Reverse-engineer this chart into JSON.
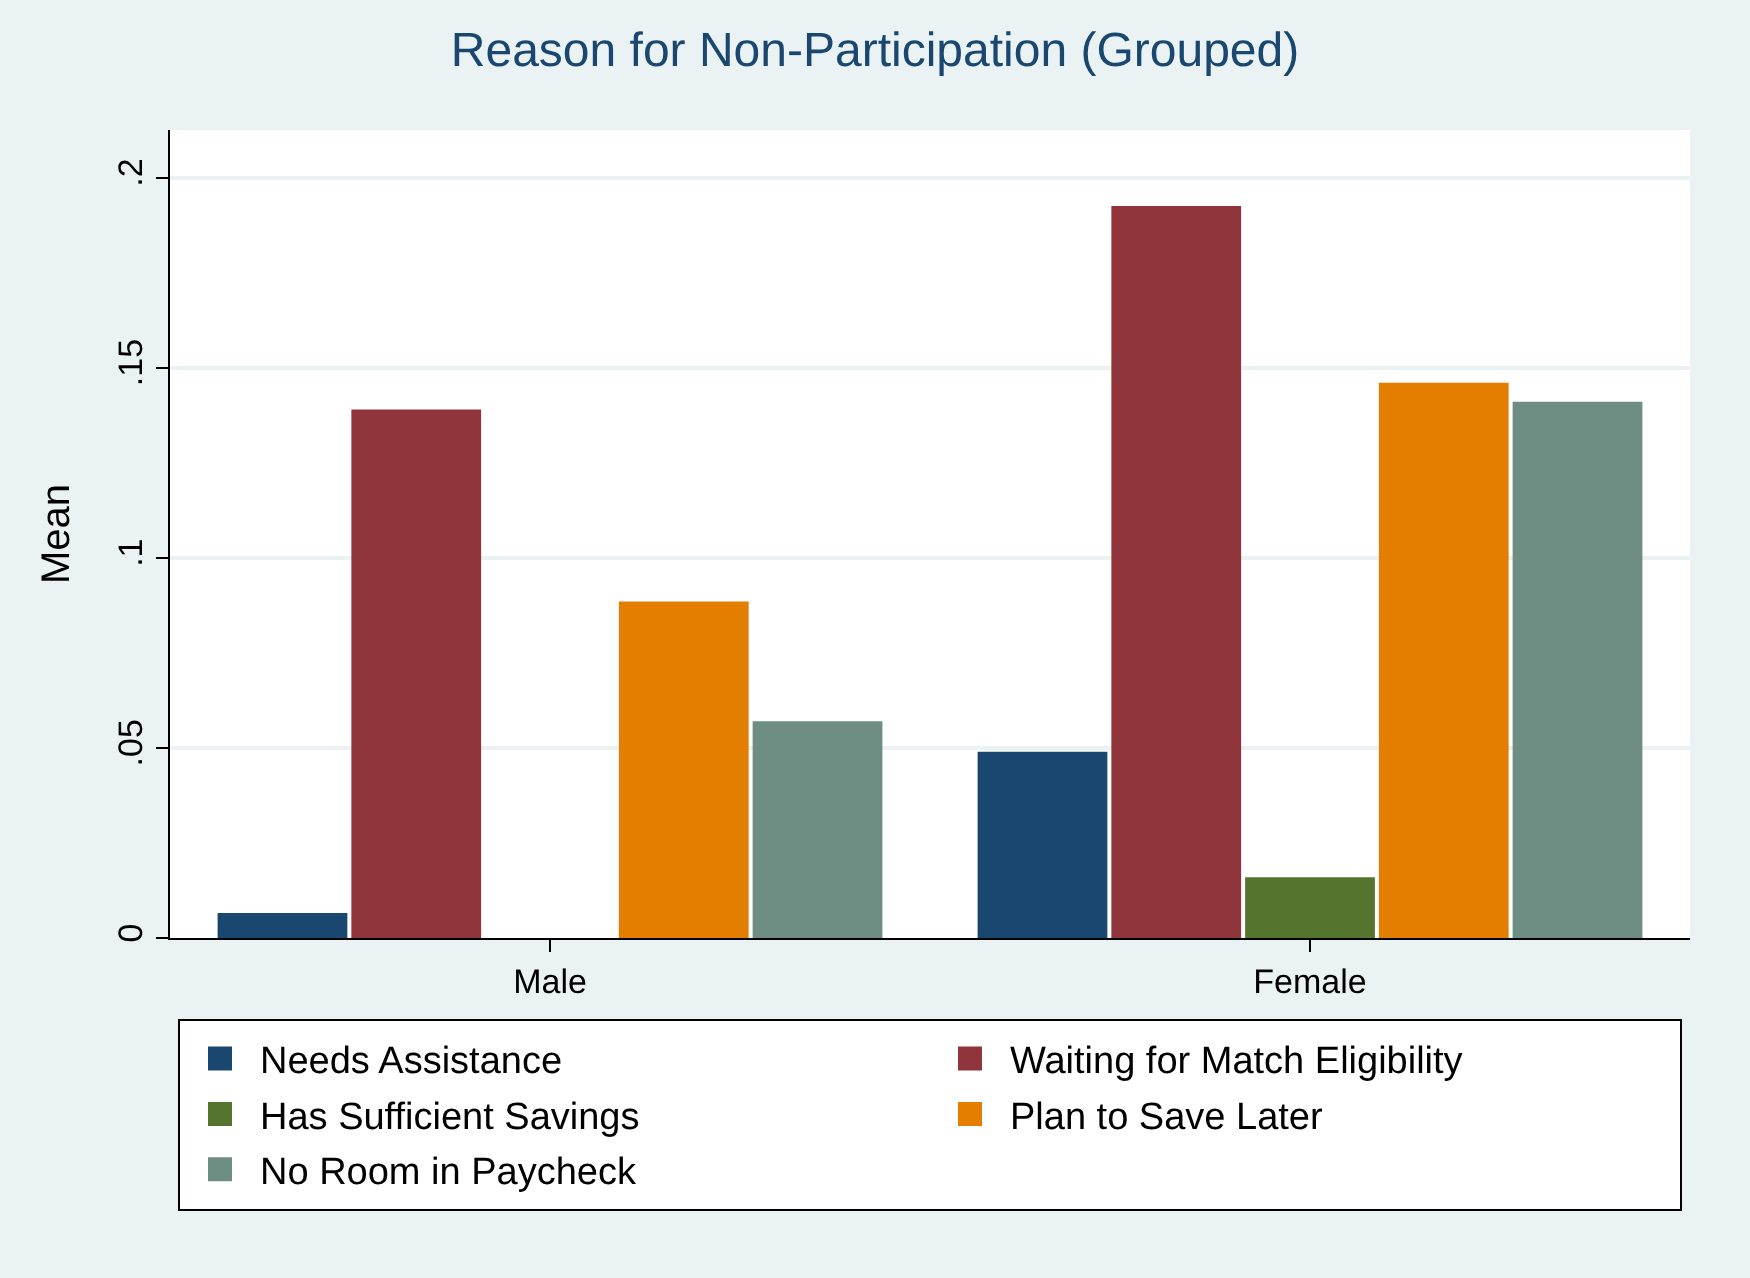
{
  "chart_data": {
    "type": "bar",
    "title": "Reason for Non-Participation (Grouped)",
    "ylabel": "Mean",
    "categories": [
      "Male",
      "Female"
    ],
    "series": [
      {
        "name": "Needs Assistance",
        "color": "#1a476f",
        "values": [
          0.0066,
          0.049
        ]
      },
      {
        "name": "Waiting for Match Eligibility",
        "color": "#90353b",
        "values": [
          0.139,
          0.1925
        ]
      },
      {
        "name": "Has Sufficient Savings",
        "color": "#55752f",
        "values": [
          0,
          0.016
        ]
      },
      {
        "name": "Plan to Save Later",
        "color": "#e37e00",
        "values": [
          0.0885,
          0.146
        ]
      },
      {
        "name": "No Room in Paycheck",
        "color": "#6e8e84",
        "values": [
          0.057,
          0.141
        ]
      }
    ],
    "ylim": [
      0,
      0.2125
    ],
    "yticks": [
      {
        "value": 0,
        "label": "0"
      },
      {
        "value": 0.05,
        "label": ".05"
      },
      {
        "value": 0.1,
        "label": ".1"
      },
      {
        "value": 0.15,
        "label": ".15"
      },
      {
        "value": 0.2,
        "label": ".2"
      }
    ],
    "grid": "y",
    "legend": "bottom"
  }
}
